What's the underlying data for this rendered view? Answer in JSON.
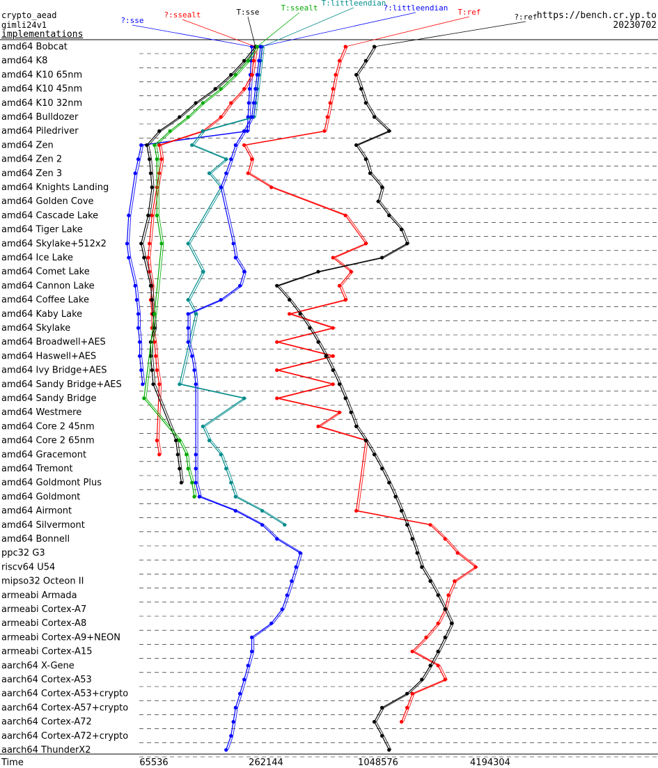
{
  "header": {
    "lines": [
      "crypto_aead",
      "gimli24v1",
      "implementations"
    ],
    "url": "https://bench.cr.yp.to",
    "date": "20230702"
  },
  "chart_data": {
    "type": "line",
    "x_axis": {
      "label": "Time",
      "scale": "log",
      "ticks": [
        65536,
        262144,
        1048576,
        4194304
      ],
      "tick_labels": [
        "65536",
        "262144",
        "1048576",
        "4194304"
      ]
    },
    "legend": [
      {
        "name": "?:sse",
        "color": "#0000ff"
      },
      {
        "name": "?:ssealt",
        "color": "#ff0000"
      },
      {
        "name": "T:sse",
        "color": "#000000"
      },
      {
        "name": "T:ssealt",
        "color": "#00aa00"
      },
      {
        "name": "T:littleendian",
        "color": "#008b8b"
      },
      {
        "name": "?:littleendian",
        "color": "#0000ff"
      },
      {
        "name": "T:ref",
        "color": "#ff0000"
      },
      {
        "name": "?:ref",
        "color": "#000000"
      }
    ],
    "categories": [
      "amd64 Bobcat",
      "amd64 K8",
      "amd64 K10 65nm",
      "amd64 K10 45nm",
      "amd64 K10 32nm",
      "amd64 Bulldozer",
      "amd64 Piledriver",
      "amd64 Zen",
      "amd64 Zen 2",
      "amd64 Zen 3",
      "amd64 Knights Landing",
      "amd64 Golden Cove",
      "amd64 Cascade Lake",
      "amd64 Tiger Lake",
      "amd64 Skylake+512x2",
      "amd64 Ice Lake",
      "amd64 Comet Lake",
      "amd64 Cannon Lake",
      "amd64 Coffee Lake",
      "amd64 Kaby Lake",
      "amd64 Skylake",
      "amd64 Broadwell+AES",
      "amd64 Haswell+AES",
      "amd64 Ivy Bridge+AES",
      "amd64 Sandy Bridge+AES",
      "amd64 Sandy Bridge",
      "amd64 Westmere",
      "amd64 Core 2 45nm",
      "amd64 Core 2 65nm",
      "amd64 Gracemont",
      "amd64 Tremont",
      "amd64 Goldmont Plus",
      "amd64 Goldmont",
      "amd64 Airmont",
      "amd64 Silvermont",
      "amd64 Bonnell",
      "ppc32 G3",
      "riscv64 U54",
      "mipso32 Octeon II",
      "armeabi Armada",
      "armeabi Cortex-A7",
      "armeabi Cortex-A8",
      "armeabi Cortex-A9+NEON",
      "armeabi Cortex-A15",
      "aarch64 X-Gene",
      "aarch64 Cortex-A53",
      "aarch64 Cortex-A53+crypto",
      "aarch64 Cortex-A57+crypto",
      "aarch64 Cortex-A72",
      "aarch64 Cortex-A72+crypto",
      "aarch64 ThunderX2"
    ],
    "series": [
      {
        "name": "?:sse",
        "color": "#0000ff",
        "values": [
          220000,
          218000,
          216000,
          214000,
          212000,
          210000,
          208000,
          56000,
          54000,
          52000,
          null,
          null,
          48000,
          null,
          47000,
          48000,
          null,
          52000,
          53000,
          54000,
          54000,
          55000,
          55000,
          56000,
          57000,
          null,
          null,
          null,
          null,
          null,
          null,
          null,
          null,
          null,
          null,
          null,
          null,
          null,
          null,
          null,
          null,
          null,
          null,
          null,
          null,
          null,
          null,
          null,
          null,
          null,
          null
        ]
      },
      {
        "name": "?:ssealt",
        "color": "#ff0000",
        "values": [
          230000,
          225000,
          220000,
          200000,
          170000,
          150000,
          120000,
          70000,
          72000,
          70000,
          68000,
          null,
          64000,
          null,
          62000,
          61000,
          62000,
          64000,
          63000,
          64000,
          64000,
          66000,
          67000,
          68000,
          70000,
          null,
          null,
          null,
          68000,
          70000,
          null,
          null,
          null,
          null,
          null,
          null,
          null,
          null,
          null,
          null,
          null,
          null,
          null,
          null,
          null,
          null,
          null,
          null,
          null,
          null,
          null
        ]
      },
      {
        "name": "T:sse",
        "color": "#000000",
        "values": [
          230000,
          200000,
          170000,
          140000,
          110000,
          90000,
          70000,
          60000,
          62000,
          63000,
          64000,
          null,
          61000,
          null,
          56000,
          58000,
          null,
          63000,
          64000,
          65000,
          66000,
          63000,
          63000,
          64000,
          65000,
          null,
          null,
          null,
          86000,
          88000,
          90000,
          92000,
          null,
          null,
          null,
          null,
          null,
          null,
          null,
          null,
          null,
          null,
          null,
          null,
          null,
          null,
          null,
          null,
          null,
          null,
          null
        ]
      },
      {
        "name": "T:ssealt",
        "color": "#00aa00",
        "values": [
          235000,
          210000,
          180000,
          150000,
          120000,
          100000,
          80000,
          66000,
          68000,
          null,
          null,
          null,
          68000,
          null,
          72000,
          null,
          null,
          null,
          null,
          66000,
          null,
          null,
          null,
          null,
          null,
          58000,
          null,
          null,
          90000,
          98000,
          100000,
          105000,
          108000,
          null,
          null,
          null,
          null,
          null,
          null,
          null,
          null,
          null,
          null,
          null,
          null,
          null,
          null,
          null,
          null,
          null,
          null
        ]
      },
      {
        "name": "T:littleendian",
        "color": "#008b8b",
        "values": [
          250000,
          245000,
          240000,
          235000,
          230000,
          225000,
          120000,
          105000,
          160000,
          130000,
          150000,
          null,
          null,
          null,
          100000,
          null,
          120000,
          null,
          100000,
          110000,
          null,
          null,
          null,
          null,
          90000,
          200000,
          null,
          120000,
          130000,
          150000,
          160000,
          170000,
          180000,
          250000,
          330000,
          null,
          null,
          null,
          null,
          null,
          null,
          null,
          null,
          null,
          null,
          null,
          null,
          null,
          null,
          null,
          null
        ]
      },
      {
        "name": "?:littleendian",
        "color": "#0000ff",
        "values": [
          245000,
          240000,
          235000,
          230000,
          225000,
          220000,
          200000,
          180000,
          170000,
          160000,
          150000,
          null,
          null,
          null,
          175000,
          180000,
          200000,
          190000,
          150000,
          100000,
          100000,
          100000,
          105000,
          108000,
          110000,
          null,
          null,
          null,
          null,
          110000,
          110000,
          110000,
          115000,
          180000,
          250000,
          300000,
          400000,
          380000,
          360000,
          340000,
          320000,
          280000,
          220000,
          220000,
          210000,
          200000,
          190000,
          180000,
          175000,
          170000,
          160000
        ]
      },
      {
        "name": "T:ref",
        "color": "#ff0000",
        "values": [
          700000,
          650000,
          620000,
          600000,
          580000,
          560000,
          540000,
          200000,
          220000,
          210000,
          280000,
          null,
          700000,
          null,
          900000,
          600000,
          750000,
          650000,
          700000,
          350000,
          600000,
          300000,
          600000,
          300000,
          600000,
          300000,
          650000,
          500000,
          900000,
          null,
          null,
          null,
          null,
          800000,
          2000000,
          2400000,
          2800000,
          3500000,
          2700000,
          2500000,
          2400000,
          2200000,
          1900000,
          1600000,
          2200000,
          2400000,
          1600000,
          1500000,
          1400000,
          null,
          null
        ]
      },
      {
        "name": "?:ref",
        "color": "#000000",
        "values": [
          1000000,
          900000,
          800000,
          850000,
          900000,
          1000000,
          1200000,
          800000,
          900000,
          950000,
          1100000,
          1050000,
          1200000,
          1400000,
          1500000,
          1100000,
          500000,
          300000,
          350000,
          400000,
          450000,
          500000,
          550000,
          600000,
          650000,
          700000,
          750000,
          800000,
          900000,
          1000000,
          1100000,
          1200000,
          1300000,
          1400000,
          1500000,
          1600000,
          1700000,
          1800000,
          2000000,
          2200000,
          2400000,
          2600000,
          2400000,
          2200000,
          2000000,
          1800000,
          1500000,
          1100000,
          1000000,
          1100000,
          1200000
        ]
      }
    ]
  }
}
